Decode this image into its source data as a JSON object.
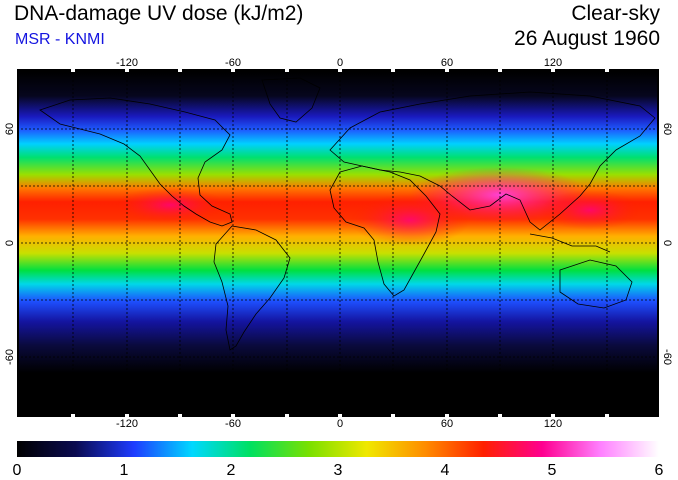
{
  "header": {
    "title": "DNA-damage UV dose (kJ/m2)",
    "subtitle": "MSR - KNMI",
    "condition": "Clear-sky",
    "date": "26 August 1960"
  },
  "map": {
    "projection": "equirectangular",
    "lon_range": [
      -180,
      180
    ],
    "lat_range": [
      -90,
      90
    ],
    "lon_ticks": [
      "-120",
      "-60",
      "0",
      "60",
      "120"
    ],
    "lat_ticks": [
      "60",
      "0",
      "-60"
    ],
    "grid": "dashed 30-degree graticule"
  },
  "colorbar": {
    "ticks": [
      "0",
      "1",
      "2",
      "3",
      "4",
      "5",
      "6"
    ],
    "range": [
      0,
      6
    ],
    "colors": [
      "#000000",
      "#0a0a50",
      "#1e3cff",
      "#00d8ff",
      "#00e060",
      "#7ae000",
      "#f0e800",
      "#ff8c00",
      "#ff2000",
      "#ff0090",
      "#ff80ff",
      "#ffffff"
    ]
  }
}
